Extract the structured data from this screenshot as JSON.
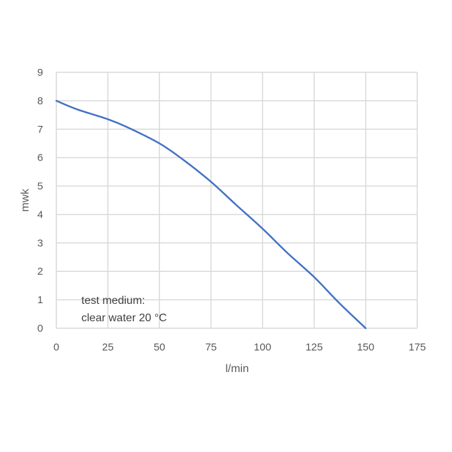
{
  "chart_data": {
    "type": "line",
    "title": "",
    "xlabel": "l/min",
    "ylabel": "mwk",
    "xlim": [
      0,
      175
    ],
    "ylim": [
      0,
      9
    ],
    "x_ticks": [
      "0",
      "25",
      "50",
      "75",
      "100",
      "125",
      "150",
      "175"
    ],
    "y_ticks": [
      "0",
      "1",
      "2",
      "3",
      "4",
      "5",
      "6",
      "7",
      "8",
      "9"
    ],
    "grid": true,
    "legend": "none",
    "series": [
      {
        "color": "#4472c4",
        "x": [
          0,
          10,
          25,
          35,
          50,
          62,
          75,
          87,
          100,
          112,
          125,
          137,
          150
        ],
        "y": [
          8.0,
          7.7,
          7.35,
          7.05,
          6.5,
          5.9,
          5.15,
          4.35,
          3.5,
          2.65,
          1.8,
          0.9,
          0.0
        ]
      }
    ],
    "annotation": {
      "line1": "test medium:",
      "line2": "clear water 20 °C"
    }
  }
}
